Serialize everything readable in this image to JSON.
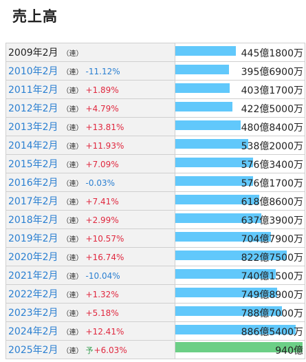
{
  "chart_data": {
    "type": "bar",
    "title": "売上高",
    "unit": "億円",
    "colors": {
      "actual": "#61c8fb",
      "forecast": "#6ccf86",
      "increase": "#e0283f",
      "decrease": "#2a7fd1"
    },
    "rows": [
      {
        "period": "2009年2月",
        "basis": "（連）",
        "forecast": false,
        "change": "",
        "value": 445.18,
        "value_label": "445億1800万"
      },
      {
        "period": "2010年2月",
        "basis": "（連）",
        "forecast": false,
        "change": "-11.12%",
        "value": 395.69,
        "value_label": "395億6900万"
      },
      {
        "period": "2011年2月",
        "basis": "（連）",
        "forecast": false,
        "change": "+1.89%",
        "value": 403.17,
        "value_label": "403億1700万"
      },
      {
        "period": "2012年2月",
        "basis": "（連）",
        "forecast": false,
        "change": "+4.79%",
        "value": 422.5,
        "value_label": "422億5000万"
      },
      {
        "period": "2013年2月",
        "basis": "（連）",
        "forecast": false,
        "change": "+13.81%",
        "value": 480.84,
        "value_label": "480億8400万"
      },
      {
        "period": "2014年2月",
        "basis": "（連）",
        "forecast": false,
        "change": "+11.93%",
        "value": 538.2,
        "value_label": "538億2000万"
      },
      {
        "period": "2015年2月",
        "basis": "（連）",
        "forecast": false,
        "change": "+7.09%",
        "value": 576.34,
        "value_label": "576億3400万"
      },
      {
        "period": "2016年2月",
        "basis": "（連）",
        "forecast": false,
        "change": "-0.03%",
        "value": 576.17,
        "value_label": "576億1700万"
      },
      {
        "period": "2017年2月",
        "basis": "（連）",
        "forecast": false,
        "change": "+7.41%",
        "value": 618.86,
        "value_label": "618億8600万"
      },
      {
        "period": "2018年2月",
        "basis": "（連）",
        "forecast": false,
        "change": "+2.99%",
        "value": 637.39,
        "value_label": "637億3900万"
      },
      {
        "period": "2019年2月",
        "basis": "（連）",
        "forecast": false,
        "change": "+10.57%",
        "value": 704.79,
        "value_label": "704億7900万"
      },
      {
        "period": "2020年2月",
        "basis": "（連）",
        "forecast": false,
        "change": "+16.74%",
        "value": 822.75,
        "value_label": "822億7500万"
      },
      {
        "period": "2021年2月",
        "basis": "（連）",
        "forecast": false,
        "change": "-10.04%",
        "value": 740.15,
        "value_label": "740億1500万"
      },
      {
        "period": "2022年2月",
        "basis": "（連）",
        "forecast": false,
        "change": "+1.32%",
        "value": 749.89,
        "value_label": "749億8900万"
      },
      {
        "period": "2023年2月",
        "basis": "（連）",
        "forecast": false,
        "change": "+5.18%",
        "value": 788.7,
        "value_label": "788億7000万"
      },
      {
        "period": "2024年2月",
        "basis": "（連）",
        "forecast": false,
        "change": "+12.41%",
        "value": 886.54,
        "value_label": "886億5400万"
      },
      {
        "period": "2025年2月",
        "basis": "（連）",
        "forecast": true,
        "forecast_mark": "予",
        "change": "+6.03%",
        "value": 940.0,
        "value_label": "940億"
      }
    ]
  }
}
